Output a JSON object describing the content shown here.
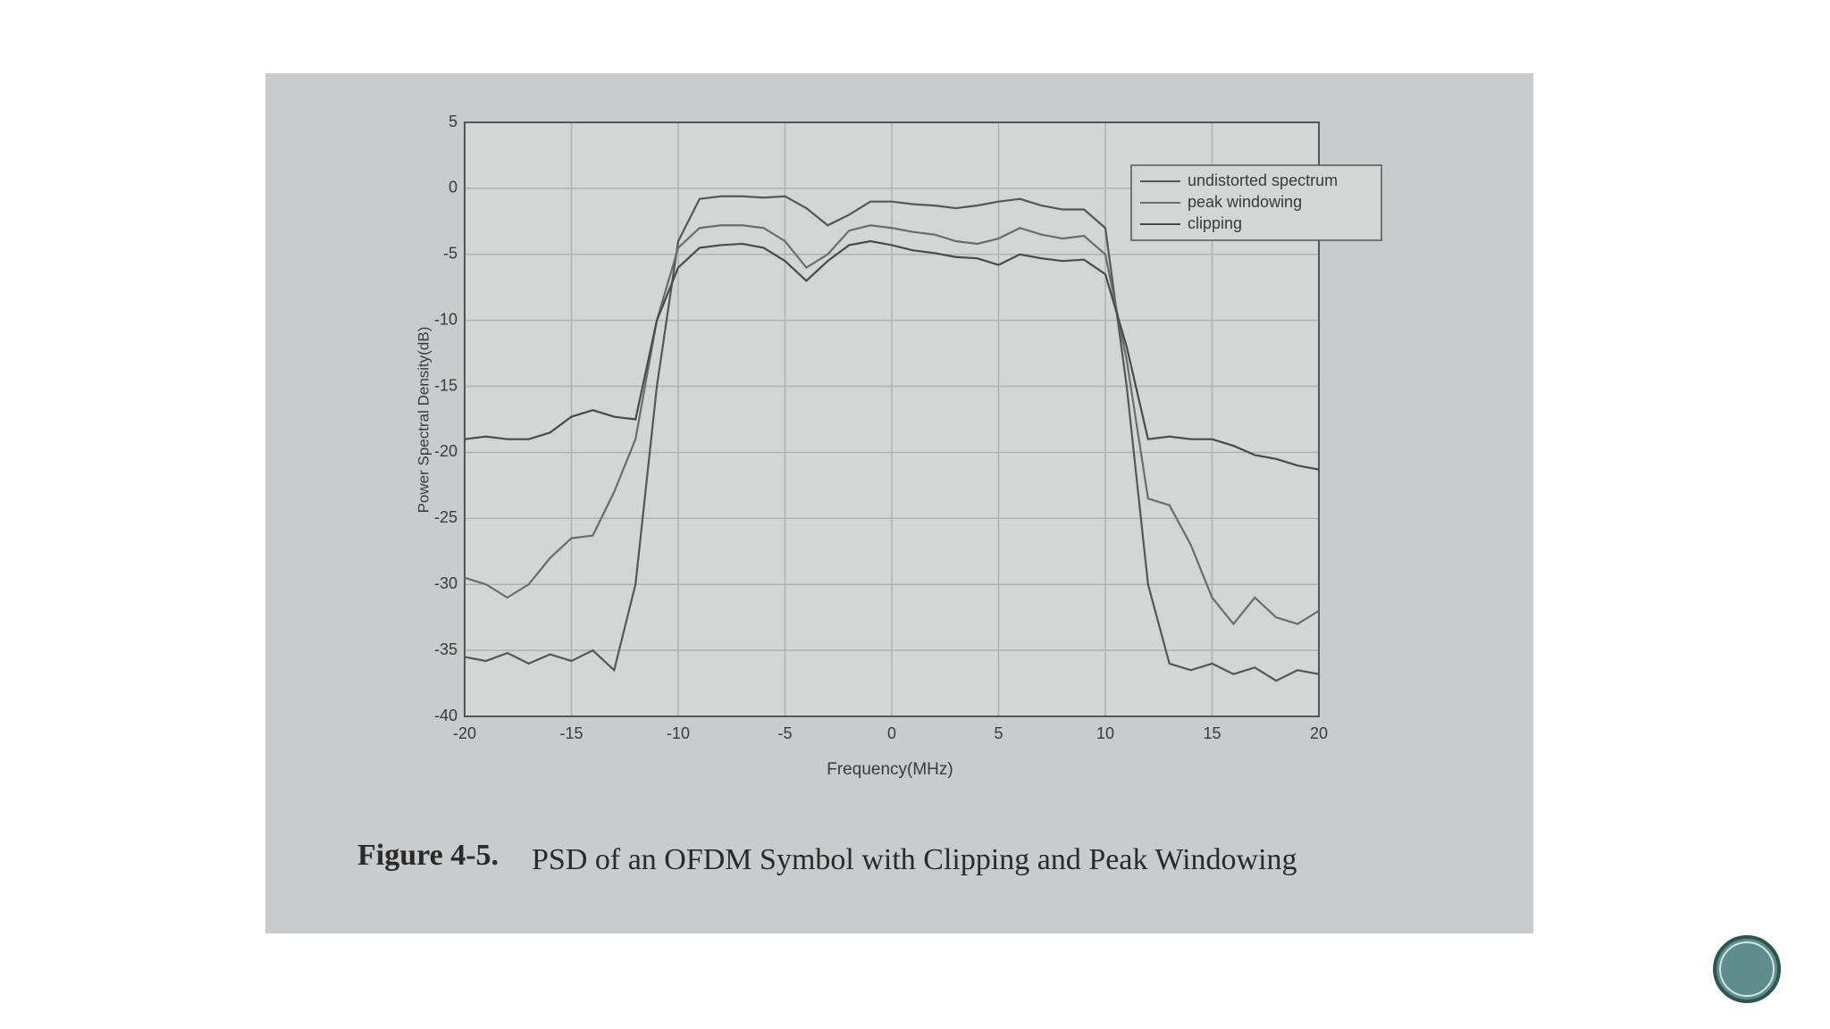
{
  "chart_data": {
    "type": "line",
    "x_label": "Frequency(MHz)",
    "y_label": "Power Spectral Density(dB)",
    "x": [
      -20,
      -19,
      -18,
      -17,
      -16,
      -15,
      -14,
      -13,
      -12,
      -11,
      -10,
      -9,
      -8,
      -7,
      -6,
      -5,
      -4,
      -3,
      -2,
      -1,
      0,
      1,
      2,
      3,
      4,
      5,
      6,
      7,
      8,
      9,
      10,
      11,
      12,
      13,
      14,
      15,
      16,
      17,
      18,
      19,
      20
    ],
    "series": [
      {
        "name": "undistorted spectrum",
        "color": "#565656",
        "values": [
          -35.5,
          -35.8,
          -35.2,
          -36,
          -35.3,
          -35.8,
          -35,
          -36.5,
          -30,
          -15,
          -4,
          -0.8,
          -0.6,
          -0.6,
          -0.7,
          -0.6,
          -1.5,
          -2.8,
          -2,
          -1,
          -1,
          -1.2,
          -1.3,
          -1.5,
          -1.3,
          -1,
          -0.8,
          -1.3,
          -1.6,
          -1.6,
          -3,
          -15,
          -30,
          -36,
          -36.5,
          -36,
          -36.8,
          -36.3,
          -37.3,
          -36.5,
          -36.8
        ]
      },
      {
        "name": "peak windowing",
        "color": "#6c6c6c",
        "values": [
          -29.5,
          -30,
          -31,
          -30,
          -28,
          -26.5,
          -26.3,
          -23,
          -19,
          -10,
          -4.5,
          -3,
          -2.8,
          -2.8,
          -3,
          -4,
          -6,
          -5,
          -3.2,
          -2.8,
          -3,
          -3.3,
          -3.5,
          -4,
          -4.2,
          -3.8,
          -3,
          -3.5,
          -3.8,
          -3.6,
          -5,
          -13,
          -23.5,
          -24,
          -27,
          -31,
          -33,
          -31,
          -32.5,
          -33,
          -32
        ]
      },
      {
        "name": "clipping",
        "color": "#4a4a4a",
        "values": [
          -19,
          -18.8,
          -19,
          -19,
          -18.5,
          -17.3,
          -16.8,
          -17.3,
          -17.5,
          -10,
          -6,
          -4.5,
          -4.3,
          -4.2,
          -4.5,
          -5.5,
          -7,
          -5.5,
          -4.3,
          -4,
          -4.3,
          -4.7,
          -4.9,
          -5.2,
          -5.3,
          -5.8,
          -5,
          -5.3,
          -5.5,
          -5.4,
          -6.5,
          -12,
          -19,
          -18.8,
          -19,
          -19,
          -19.5,
          -20.2,
          -20.5,
          -21,
          -21.3
        ]
      }
    ],
    "xlim": [
      -20,
      20
    ],
    "xticks": [
      -20,
      -15,
      -10,
      -5,
      0,
      5,
      10,
      15,
      20
    ],
    "ylim": [
      -40,
      5
    ],
    "yticks": [
      -40,
      -35,
      -30,
      -25,
      -20,
      -15,
      -10,
      -5,
      0,
      5
    ],
    "grid": true,
    "legend": "upper right"
  },
  "caption": {
    "label": "Figure 4-5.",
    "text": "PSD of an OFDM Symbol with Clipping and Peak Windowing"
  }
}
